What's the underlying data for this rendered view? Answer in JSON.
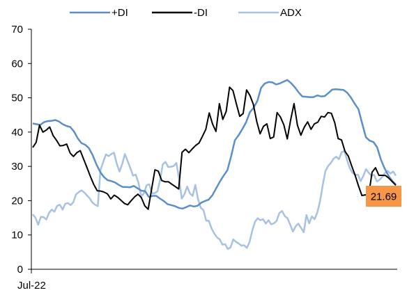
{
  "chart_data": {
    "type": "line",
    "title": "",
    "xlabel": "",
    "ylabel": "",
    "ylim": [
      0,
      70
    ],
    "yticks": [
      0,
      10,
      20,
      30,
      40,
      50,
      60,
      70
    ],
    "x_tick_labels": [
      "Jul-22"
    ],
    "grid": false,
    "legend_position": "top",
    "series": [
      {
        "name": "+DI",
        "color": "#5B8FCC",
        "values": [
          42.5,
          42.3,
          42.1,
          42.9,
          43.2,
          43.3,
          43.5,
          43.1,
          42.3,
          41.8,
          41.5,
          40.2,
          38.2,
          36.8,
          36.3,
          35.3,
          33.3,
          30.6,
          28.4,
          26.9,
          26.0,
          25.7,
          25.3,
          24.6,
          24.0,
          24.0,
          23.9,
          24.3,
          23.6,
          22.9,
          22.8,
          21.1,
          21.4,
          21.4,
          20.6,
          19.9,
          19.0,
          18.7,
          18.4,
          17.9,
          17.7,
          18.1,
          18.6,
          18.3,
          18.5,
          19.4,
          19.9,
          20.3,
          21.6,
          23.6,
          25.6,
          27.3,
          28.9,
          33.0,
          37.6,
          39.1,
          40.9,
          42.9,
          45.8,
          47.1,
          49.1,
          52.9,
          54.2,
          54.6,
          54.5,
          53.9,
          54.2,
          54.7,
          55.2,
          54.3,
          53.1,
          51.6,
          50.4,
          50.3,
          50.2,
          50.2,
          50.7,
          50.4,
          50.5,
          51.4,
          52.4,
          52.5,
          52.4,
          52.3,
          51.5,
          50.1,
          48.3,
          46.7,
          42.5,
          38.5,
          37.5,
          37.1,
          35.6,
          32.0,
          29.4,
          27.3,
          25.8,
          24.7
        ]
      },
      {
        "name": "-DI",
        "color": "#000000",
        "values": [
          35.5,
          37.0,
          42.0,
          40.0,
          40.6,
          41.5,
          39.0,
          37.6,
          36.0,
          36.1,
          36.5,
          33.9,
          32.9,
          34.0,
          34.6,
          32.1,
          29.6,
          27.0,
          24.7,
          22.9,
          22.8,
          22.5,
          22.0,
          20.5,
          21.6,
          21.0,
          20.1,
          19.2,
          18.8,
          20.0,
          21.1,
          21.9,
          20.9,
          18.5,
          17.5,
          23.2,
          29.0,
          28.6,
          25.9,
          25.5,
          25.5,
          24.8,
          24.1,
          23.4,
          34.1,
          35.0,
          34.0,
          35.1,
          36.1,
          36.8,
          38.8,
          40.8,
          45.6,
          42.3,
          40.2,
          48.3,
          43.7,
          46.0,
          53.1,
          52.1,
          48.3,
          44.6,
          45.4,
          52.3,
          50.7,
          48.1,
          43.1,
          39.5,
          41.7,
          42.4,
          38.1,
          38.6,
          45.7,
          44.4,
          42.1,
          38.0,
          43.6,
          48.3,
          42.0,
          39.1,
          41.4,
          43.0,
          40.8,
          42.4,
          42.9,
          44.6,
          44.4,
          45.7,
          45.5,
          42.7,
          38.1,
          37.7,
          34.4,
          33.0,
          30.1,
          27.4,
          24.3,
          21.5,
          21.7,
          21.6,
          28.3,
          29.6,
          27.4,
          27.4,
          27.3,
          26.5,
          25.5,
          24.5
        ]
      },
      {
        "name": "ADX",
        "color": "#A7C2E3",
        "values": [
          16.0,
          15.0,
          13.0,
          15.3,
          15.2,
          14.5,
          16.4,
          17.4,
          16.8,
          18.5,
          18.8,
          17.4,
          19.1,
          19.3,
          18.7,
          19.6,
          21.9,
          22.5,
          23.0,
          22.4,
          21.5,
          20.7,
          19.5,
          18.8,
          18.4,
          29.0,
          31.3,
          33.5,
          33.0,
          33.6,
          34.0,
          30.8,
          28.5,
          30.6,
          33.6,
          31.6,
          29.5,
          27.3,
          27.6,
          25.3,
          21.3,
          22.1,
          24.5,
          24.8,
          22.1,
          22.2,
          22.7,
          26.1,
          30.6,
          31.3,
          29.8,
          29.9,
          30.1,
          31.0,
          26.4,
          20.6,
          21.9,
          24.1,
          22.1,
          21.4,
          24.6,
          20.4,
          17.9,
          17.3,
          14.2,
          14.1,
          11.9,
          10.4,
          9.3,
          8.7,
          7.2,
          7.3,
          5.9,
          6.4,
          8.7,
          8.0,
          7.5,
          6.9,
          7.0,
          6.2,
          7.9,
          11.2,
          13.8,
          14.9,
          14.3,
          14.6,
          13.3,
          14.3,
          13.1,
          13.4,
          14.1,
          16.4,
          17.0,
          15.5,
          14.9,
          13.0,
          11.0,
          12.5,
          13.3,
          12.1,
          10.8,
          15.8,
          13.4,
          15.4,
          14.6,
          16.5,
          19.7,
          24.4,
          28.6,
          30.1,
          31.0,
          32.2,
          32.8,
          32.1,
          34.1,
          34.5,
          31.9,
          29.5,
          28.1,
          27.5,
          27.6,
          25.7,
          27.2,
          29.2,
          28.1,
          27.3,
          27.5,
          25.6,
          26.1,
          27.0,
          28.1,
          28.7,
          27.9,
          28.5,
          27.3
        ]
      }
    ],
    "last_value_label": "21.69",
    "last_value_color": "#F79646"
  }
}
